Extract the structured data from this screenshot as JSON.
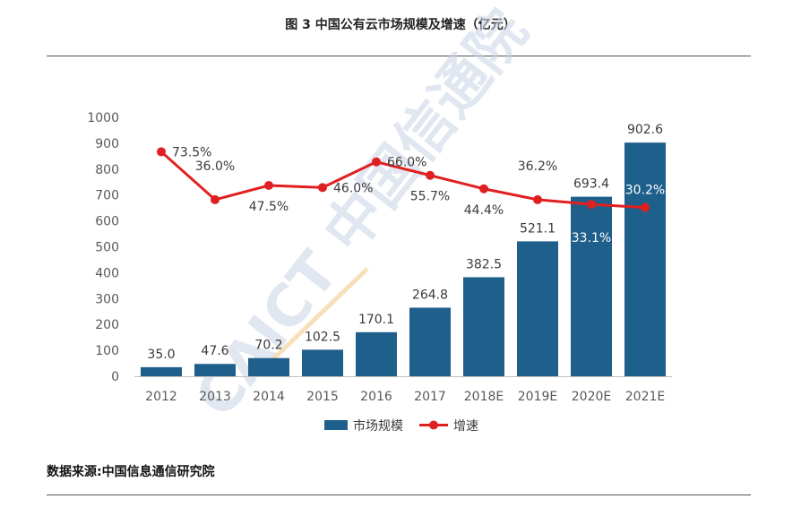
{
  "page": {
    "title": "图 3 中国公有云市场规模及增速（亿元）",
    "source": "数据来源:中国信息通信研究院",
    "watermark": "CAICT 中国信通院"
  },
  "colors": {
    "bar": "#1f5f8b",
    "line": "#e02020",
    "axis": "#c0c0c0",
    "watermark": "#c9d3e6",
    "watermark_accent": "#f3c98b"
  },
  "chart_data": {
    "type": "bar",
    "categories": [
      "2012",
      "2013",
      "2014",
      "2015",
      "2016",
      "2017",
      "2018E",
      "2019E",
      "2020E",
      "2021E"
    ],
    "series": [
      {
        "name": "市场规模",
        "type": "bar",
        "values": [
          35.0,
          47.6,
          70.2,
          102.5,
          170.1,
          264.8,
          382.5,
          521.1,
          693.4,
          902.6
        ],
        "labels": [
          "35.0",
          "47.6",
          "70.2",
          "102.5",
          "170.1",
          "264.8",
          "382.5",
          "521.1",
          "693.4",
          "902.6"
        ]
      },
      {
        "name": "增速",
        "type": "line",
        "values": [
          73.5,
          36.0,
          47.5,
          46.0,
          66.0,
          55.7,
          44.4,
          36.2,
          33.1,
          30.2
        ],
        "labels": [
          "73.5%",
          "36.0%",
          "47.5%",
          "46.0%",
          "66.0%",
          "55.7%",
          "44.4%",
          "36.2%",
          "33.1%",
          "30.2%"
        ],
        "display_values": [
          867,
          682,
          737,
          729,
          828,
          776,
          724,
          682,
          664,
          652
        ],
        "label_positions": [
          "right",
          "above",
          "below",
          "right",
          "right",
          "below",
          "below",
          "above",
          "in-bar-below",
          "in-bar"
        ]
      }
    ],
    "yaxis": {
      "min": 0,
      "max": 1000,
      "ticks": [
        "0",
        "100",
        "200",
        "300",
        "400",
        "500",
        "600",
        "700",
        "800",
        "900",
        "1000"
      ]
    },
    "legend": {
      "position": "bottom-center",
      "items": [
        "市场规模",
        "增速"
      ]
    }
  }
}
